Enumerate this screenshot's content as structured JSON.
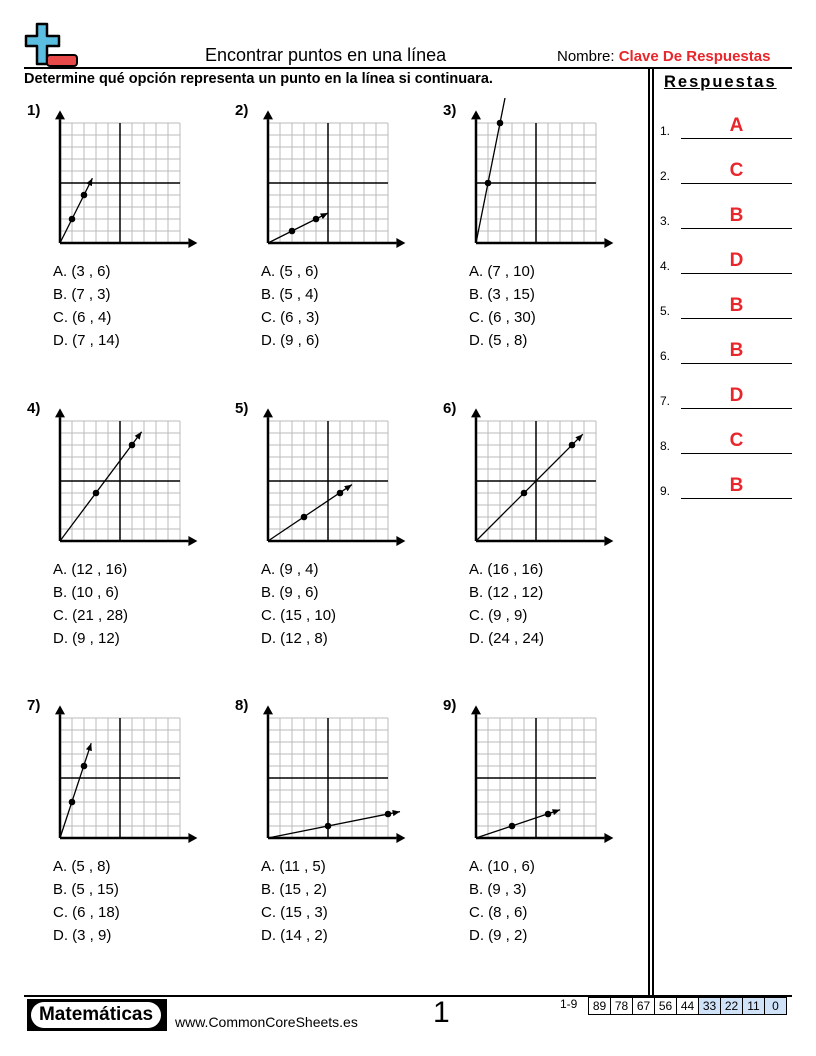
{
  "header": {
    "title": "Encontrar puntos en una línea",
    "name_label": "Nombre:",
    "name_value": "Clave De Respuestas",
    "instructions": "Determine qué opción representa un punto en la línea si continuara."
  },
  "colors": {
    "accent_red": "#e8262b",
    "logo_blue": "#5bbde0",
    "logo_red": "#e84a4a"
  },
  "problems": [
    {
      "num": "1)",
      "points": [
        [
          1,
          2
        ],
        [
          2,
          4
        ]
      ],
      "arrow": [
        2.7,
        5.4
      ],
      "options": [
        "A. (3 , 6)",
        "B. (7 , 3)",
        "C. (6 , 4)",
        "D. (7 , 14)"
      ]
    },
    {
      "num": "2)",
      "points": [
        [
          2,
          1
        ],
        [
          4,
          2
        ]
      ],
      "arrow": [
        5,
        2.5
      ],
      "options": [
        "A. (5 , 6)",
        "B. (5 , 4)",
        "C. (6 , 3)",
        "D. (9 , 6)"
      ]
    },
    {
      "num": "3)",
      "points": [
        [
          1,
          5
        ],
        [
          2,
          10
        ]
      ],
      "arrow": [
        2.5,
        12.5
      ],
      "options": [
        "A. (7 , 10)",
        "B. (3 , 15)",
        "C. (6 , 30)",
        "D. (5 , 8)"
      ]
    },
    {
      "num": "4)",
      "points": [
        [
          3,
          4
        ],
        [
          6,
          8
        ]
      ],
      "arrow": [
        6.8,
        9.1
      ],
      "options": [
        "A. (12 , 16)",
        "B. (10 , 6)",
        "C. (21 , 28)",
        "D. (9 , 12)"
      ]
    },
    {
      "num": "5)",
      "points": [
        [
          3,
          2
        ],
        [
          6,
          4
        ]
      ],
      "arrow": [
        7,
        4.7
      ],
      "options": [
        "A. (9 , 4)",
        "B. (9 , 6)",
        "C. (15 , 10)",
        "D. (12 , 8)"
      ]
    },
    {
      "num": "6)",
      "points": [
        [
          4,
          4
        ],
        [
          8,
          8
        ]
      ],
      "arrow": [
        8.9,
        8.9
      ],
      "options": [
        "A. (16 , 16)",
        "B. (12 , 12)",
        "C. (9 , 9)",
        "D. (24 , 24)"
      ]
    },
    {
      "num": "7)",
      "points": [
        [
          1,
          3
        ],
        [
          2,
          6
        ]
      ],
      "arrow": [
        2.6,
        7.9
      ],
      "options": [
        "A. (5 , 8)",
        "B. (5 , 15)",
        "C. (6 , 18)",
        "D. (3 , 9)"
      ]
    },
    {
      "num": "8)",
      "points": [
        [
          5,
          1
        ],
        [
          10,
          2
        ]
      ],
      "arrow": [
        11,
        2.2
      ],
      "options": [
        "A. (11 , 5)",
        "B. (15 , 2)",
        "C. (15 , 3)",
        "D. (14 , 2)"
      ]
    },
    {
      "num": "9)",
      "points": [
        [
          3,
          1
        ],
        [
          6,
          2
        ]
      ],
      "arrow": [
        7,
        2.35
      ],
      "options": [
        "A. (10 , 6)",
        "B. (9 , 3)",
        "C. (8 , 6)",
        "D. (9 , 2)"
      ]
    }
  ],
  "answers": {
    "heading": "Respuestas",
    "items": [
      {
        "n": "1.",
        "a": "A"
      },
      {
        "n": "2.",
        "a": "C"
      },
      {
        "n": "3.",
        "a": "B"
      },
      {
        "n": "4.",
        "a": "D"
      },
      {
        "n": "5.",
        "a": "B"
      },
      {
        "n": "6.",
        "a": "B"
      },
      {
        "n": "7.",
        "a": "D"
      },
      {
        "n": "8.",
        "a": "C"
      },
      {
        "n": "9.",
        "a": "B"
      }
    ]
  },
  "footer": {
    "brand": "Matemáticas",
    "site": "www.CommonCoreSheets.es",
    "page": "1",
    "score_label": "1-9",
    "scores": [
      "89",
      "78",
      "67",
      "56",
      "44",
      "33",
      "22",
      "11",
      "0"
    ]
  }
}
